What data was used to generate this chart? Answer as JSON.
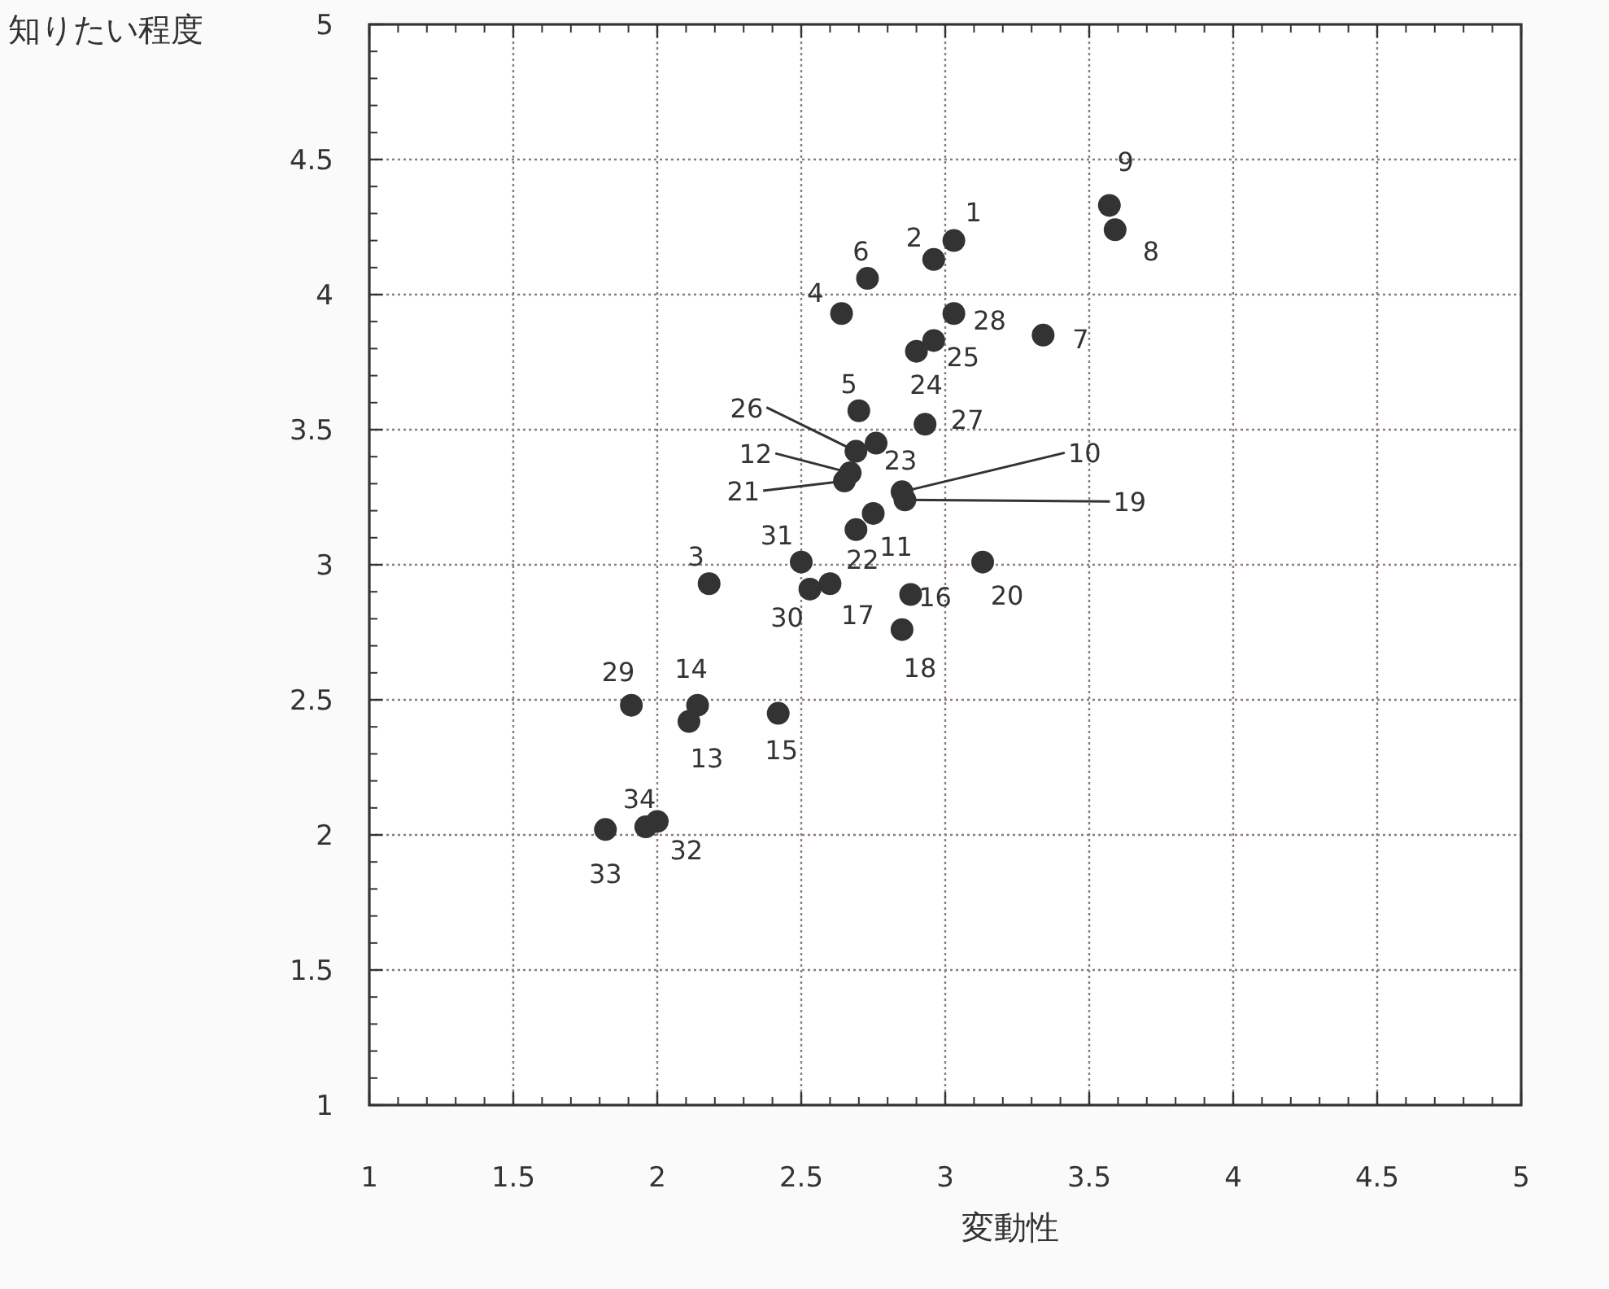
{
  "chart_data": {
    "type": "scatter",
    "xlabel": "変動性",
    "ylabel": "知りたい程度",
    "xlim": [
      1,
      5
    ],
    "ylim": [
      1,
      5
    ],
    "xticks": [
      1,
      1.5,
      2,
      2.5,
      3,
      3.5,
      4,
      4.5,
      5
    ],
    "yticks": [
      1,
      1.5,
      2,
      2.5,
      3,
      3.5,
      4,
      4.5,
      5
    ],
    "grid": true,
    "marker": "circle",
    "series": [
      {
        "color": "#333333",
        "x": [
          3.03,
          2.96,
          2.18,
          2.64,
          2.7,
          2.73,
          3.34,
          3.59,
          3.57,
          2.85,
          2.75,
          2.67,
          2.11,
          2.14,
          2.42,
          2.88,
          2.6,
          2.85,
          2.86,
          3.13,
          2.65,
          2.69,
          2.76,
          2.9,
          2.96,
          2.69,
          2.93,
          3.03,
          1.91,
          2.53,
          2.5,
          1.96,
          1.82,
          2.0
        ],
        "values": [
          4.2,
          4.13,
          2.93,
          3.93,
          3.57,
          4.06,
          3.85,
          4.24,
          4.33,
          3.27,
          3.19,
          3.34,
          2.42,
          2.48,
          2.45,
          2.89,
          2.93,
          2.76,
          3.24,
          3.01,
          3.31,
          3.13,
          3.45,
          3.79,
          3.83,
          3.42,
          3.52,
          3.93,
          2.48,
          2.91,
          3.01,
          2.03,
          2.02,
          2.05
        ]
      }
    ],
    "annotations": [
      {
        "text": "1",
        "x": 3.03,
        "y": 4.2
      },
      {
        "text": "2",
        "x": 2.96,
        "y": 4.13
      },
      {
        "text": "3",
        "x": 2.18,
        "y": 2.93
      },
      {
        "text": "4",
        "x": 2.64,
        "y": 3.93
      },
      {
        "text": "5",
        "x": 2.7,
        "y": 3.57
      },
      {
        "text": "6",
        "x": 2.73,
        "y": 4.06
      },
      {
        "text": "7",
        "x": 3.34,
        "y": 3.85
      },
      {
        "text": "8",
        "x": 3.59,
        "y": 4.24
      },
      {
        "text": "9",
        "x": 3.57,
        "y": 4.33
      },
      {
        "text": "10",
        "x": 2.85,
        "y": 3.27
      },
      {
        "text": "11",
        "x": 2.75,
        "y": 3.19
      },
      {
        "text": "12",
        "x": 2.67,
        "y": 3.34
      },
      {
        "text": "13",
        "x": 2.11,
        "y": 2.42
      },
      {
        "text": "14",
        "x": 2.14,
        "y": 2.48
      },
      {
        "text": "15",
        "x": 2.42,
        "y": 2.45
      },
      {
        "text": "16",
        "x": 2.88,
        "y": 2.89
      },
      {
        "text": "17",
        "x": 2.6,
        "y": 2.93
      },
      {
        "text": "18",
        "x": 2.85,
        "y": 2.76
      },
      {
        "text": "19",
        "x": 2.86,
        "y": 3.24
      },
      {
        "text": "20",
        "x": 3.13,
        "y": 3.01
      },
      {
        "text": "21",
        "x": 2.65,
        "y": 3.31
      },
      {
        "text": "22",
        "x": 2.69,
        "y": 3.13
      },
      {
        "text": "23",
        "x": 2.76,
        "y": 3.45
      },
      {
        "text": "24",
        "x": 2.9,
        "y": 3.79
      },
      {
        "text": "25",
        "x": 2.96,
        "y": 3.83
      },
      {
        "text": "26",
        "x": 2.69,
        "y": 3.42
      },
      {
        "text": "27",
        "x": 2.93,
        "y": 3.52
      },
      {
        "text": "28",
        "x": 3.03,
        "y": 3.93
      },
      {
        "text": "29",
        "x": 1.91,
        "y": 2.48
      },
      {
        "text": "30",
        "x": 2.53,
        "y": 2.91
      },
      {
        "text": "31",
        "x": 2.5,
        "y": 3.01
      },
      {
        "text": "32",
        "x": 1.96,
        "y": 2.03
      },
      {
        "text": "33",
        "x": 1.82,
        "y": 2.02
      },
      {
        "text": "34",
        "x": 2.0,
        "y": 2.05
      }
    ]
  }
}
